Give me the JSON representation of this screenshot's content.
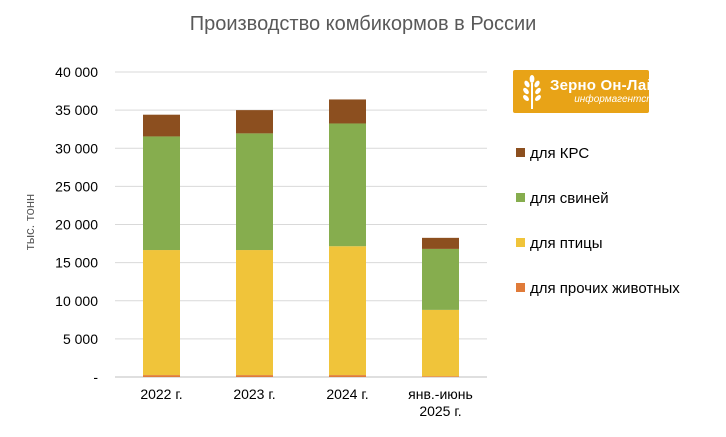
{
  "chart_data": {
    "type": "bar",
    "stacked": true,
    "title": "Производство комбикормов в России",
    "ylabel": "тыс. тонн",
    "xlabel": "",
    "ylim": [
      0,
      40000
    ],
    "yticks": [
      0,
      5000,
      10000,
      15000,
      20000,
      25000,
      30000,
      35000,
      40000
    ],
    "ytick_labels": [
      "-",
      "5 000",
      "10 000",
      "15 000",
      "20 000",
      "25 000",
      "30 000",
      "35 000",
      "40 000"
    ],
    "categories": [
      "2022 г.",
      "2023 г.",
      "2024 г.",
      "янв.-июнь 2025 г."
    ],
    "category_lines": [
      [
        "2022 г."
      ],
      [
        "2023 г."
      ],
      [
        "2024 г."
      ],
      [
        "янв.-июнь",
        "2025 г."
      ]
    ],
    "series": [
      {
        "name": "для прочих животных",
        "color": "#e07b39",
        "values": [
          250,
          250,
          250,
          100
        ]
      },
      {
        "name": "для птицы",
        "color": "#f0c43a",
        "values": [
          16400,
          16400,
          16900,
          8700
        ]
      },
      {
        "name": "для свиней",
        "color": "#86ad4e",
        "values": [
          14900,
          15300,
          16100,
          8000
        ]
      },
      {
        "name": "для КРС",
        "color": "#8c4f1f",
        "values": [
          2850,
          3050,
          3150,
          1450
        ]
      }
    ],
    "legend_order": [
      "для КРС",
      "для свиней",
      "для птицы",
      "для прочих животных"
    ],
    "grid": true,
    "legend_position": "right"
  },
  "logo": {
    "name": "Зерно Он-Лайн",
    "subtitle": "информагентство"
  }
}
